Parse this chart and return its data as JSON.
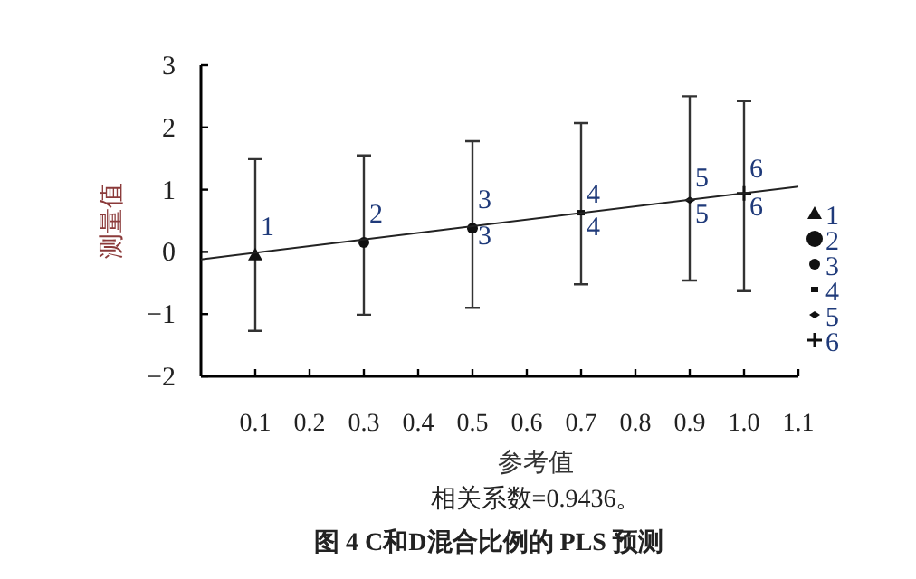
{
  "chart_data": {
    "type": "scatter",
    "title": "图 4   C和D混合比例的 PLS 预测",
    "xlabel": "参考值",
    "ylabel": "测量值",
    "annotations": [
      "相关系数=0.9436。",
      {
        "text": "1",
        "x": 0.1,
        "y": 0.44
      },
      {
        "text": "2",
        "x": 0.3,
        "y": 0.64
      },
      {
        "text": "3",
        "x": 0.5,
        "y": 0.88
      },
      {
        "text": "3",
        "x": 0.5,
        "y": 0.3
      },
      {
        "text": "4",
        "x": 0.7,
        "y": 0.96
      },
      {
        "text": "4",
        "x": 0.7,
        "y": 0.44
      },
      {
        "text": "5",
        "x": 0.9,
        "y": 1.23
      },
      {
        "text": "5",
        "x": 0.9,
        "y": 0.64
      },
      {
        "text": "6",
        "x": 1.0,
        "y": 1.37
      },
      {
        "text": "6",
        "x": 1.0,
        "y": 0.76
      }
    ],
    "xlim": [
      0,
      1.1
    ],
    "xticks": [
      {
        "value": 0.1,
        "label": "0.1"
      },
      {
        "value": 0.2,
        "label": "0.2"
      },
      {
        "value": 0.3,
        "label": "0.3"
      },
      {
        "value": 0.4,
        "label": "0.4"
      },
      {
        "value": 0.5,
        "label": "0.5"
      },
      {
        "value": 0.6,
        "label": "0.6"
      },
      {
        "value": 0.7,
        "label": "0.7"
      },
      {
        "value": 0.8,
        "label": "0.8"
      },
      {
        "value": 0.9,
        "label": "0.9"
      },
      {
        "value": 1.0,
        "label": "1.0"
      },
      {
        "value": 1.1,
        "label": "1.1"
      }
    ],
    "ylim": [
      -2,
      3
    ],
    "yticks": [
      -2,
      -1,
      0,
      1,
      2,
      3
    ],
    "grid": false,
    "legend": "right",
    "series": [
      {
        "name": "1",
        "color": "#111111",
        "marker": "triangle",
        "x": [
          0.1
        ],
        "values": [
          -0.05
        ],
        "errors": [
          [
            -1.27,
            1.49
          ]
        ]
      },
      {
        "name": "2",
        "color": "#111111",
        "marker": "circle",
        "x": [
          0.3
        ],
        "values": [
          0.15
        ],
        "errors": [
          [
            -1.01,
            1.55
          ]
        ]
      },
      {
        "name": "3",
        "color": "#111111",
        "marker": "circle",
        "x": [
          0.5
        ],
        "values": [
          0.38
        ],
        "errors": [
          [
            -0.9,
            1.78
          ]
        ]
      },
      {
        "name": "4",
        "color": "#111111",
        "marker": "square",
        "x": [
          0.7
        ],
        "values": [
          0.63
        ],
        "errors": [
          [
            -0.52,
            2.07
          ]
        ]
      },
      {
        "name": "5",
        "color": "#111111",
        "marker": "diamond",
        "x": [
          0.9
        ],
        "values": [
          0.83
        ],
        "errors": [
          [
            -0.46,
            2.5
          ]
        ]
      },
      {
        "name": "6",
        "color": "#111111",
        "marker": "cross",
        "x": [
          1.0
        ],
        "values": [
          0.94
        ],
        "errors": [
          [
            -0.63,
            2.42
          ]
        ]
      },
      {
        "type": "line",
        "color": "#222222",
        "x": [
          0,
          1.1
        ],
        "values": [
          -0.12,
          1.05
        ]
      }
    ]
  }
}
